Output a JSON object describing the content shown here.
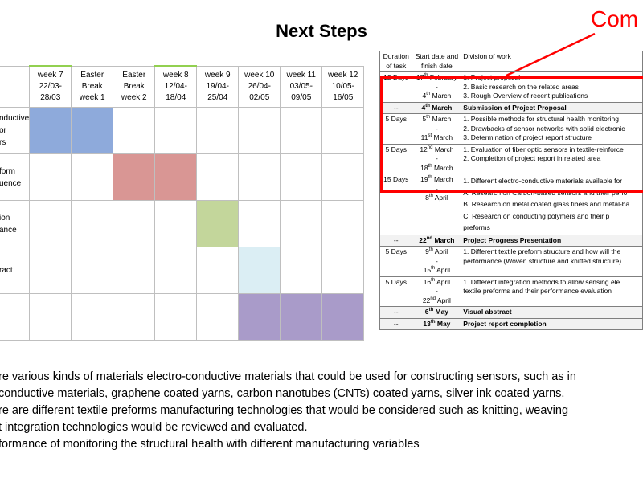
{
  "title": "Next Steps",
  "comment_label": "Com",
  "gantt": {
    "headers": [
      [
        "week 7",
        "22/03-",
        "28/03"
      ],
      [
        "Easter",
        "Break",
        "week 1"
      ],
      [
        "Easter",
        "Break",
        "week 2"
      ],
      [
        "week 8",
        "12/04-",
        "18/04"
      ],
      [
        "week 9",
        "19/04-",
        "25/04"
      ],
      [
        "week 10",
        "26/04-",
        "02/05"
      ],
      [
        "week 11",
        "03/05-",
        "09/05"
      ],
      [
        "week 12",
        "10/05-",
        "16/05"
      ]
    ],
    "row_labels": [
      [
        "nductive",
        "or",
        "rs"
      ],
      [
        "form",
        "uence"
      ],
      [
        "ion",
        "ance"
      ],
      [
        "ract"
      ],
      [
        ""
      ]
    ],
    "colors": {
      "blue": "#8eaadb",
      "red": "#d99694",
      "green": "#c3d69b",
      "lightblue": "#dbeef4",
      "purple": "#a99bc9",
      "highlight": "#ff0000"
    }
  },
  "schedule": {
    "headers": [
      "Duration of task",
      "Start date and finish date",
      "Division of work"
    ],
    "rows": [
      {
        "duration": "12 Days",
        "dates": [
          "17th February",
          "-",
          "4th March"
        ],
        "work": [
          "1.  Project proposal",
          "2.  Basic research on the related areas",
          "3.  Rough Overview of recent publications"
        ]
      },
      {
        "duration": "--",
        "dates": [
          "4th March"
        ],
        "work": [
          "Submission of Project Proposal"
        ],
        "bold": true
      },
      {
        "duration": "5 Days",
        "dates": [
          "5th March",
          "-",
          "11st March"
        ],
        "work": [
          "1.  Possible methods for structural health monitoring",
          "2.  Drawbacks of sensor networks with solid electronic",
          "3.  Determination of project report structure"
        ]
      },
      {
        "duration": "5 Days",
        "dates": [
          "12nd March",
          "-",
          "18th March"
        ],
        "work": [
          "1.  Evaluation of fiber optic sensors in textile-reinforce",
          "2.  Completion of project report in related area"
        ]
      },
      {
        "duration": "15 Days",
        "dates": [
          "19th March",
          "-",
          "8th April"
        ],
        "work": [
          "1.  Different electro-conductive materials available for",
          "A.  Research on Carbon-based sensors and their perfo",
          "B.  Research on metal coated glass fibers and metal-ba",
          "C.  Research  on  conducting  polymers  and  their  p",
          "preforms"
        ]
      },
      {
        "duration": "--",
        "dates": [
          "22nd March"
        ],
        "work": [
          "Project Progress Presentation"
        ],
        "bold": true
      },
      {
        "duration": "5 Days",
        "dates": [
          "9th April",
          "-",
          "15th April"
        ],
        "work": [
          "1.  Different textile preform structure and how will the",
          "performance (Woven structure and knitted structure)"
        ]
      },
      {
        "duration": "5 Days",
        "dates": [
          "16th April",
          "-",
          "22nd April"
        ],
        "work": [
          "1.  Different integration methods to allow sensing ele",
          "textile preforms and their performance evaluation"
        ]
      },
      {
        "duration": "--",
        "dates": [
          "6th May"
        ],
        "work": [
          "Visual abstract"
        ],
        "bold": true
      },
      {
        "duration": "--",
        "dates": [
          "13th May"
        ],
        "work": [
          "Project report completion"
        ],
        "bold": true
      }
    ]
  },
  "bullets": [
    "re various kinds of materials electro-conductive materials that could be used for constructing sensors, such as in",
    "conductive materials, graphene coated yarns, carbon nanotubes (CNTs) coated yarns, silver ink coated yarns.",
    "re are different textile preforms manufacturing technologies that would be considered such as knitting, weaving",
    "t integration technologies would be reviewed and evaluated.",
    "formance of monitoring the structural health with different manufacturing variables"
  ]
}
